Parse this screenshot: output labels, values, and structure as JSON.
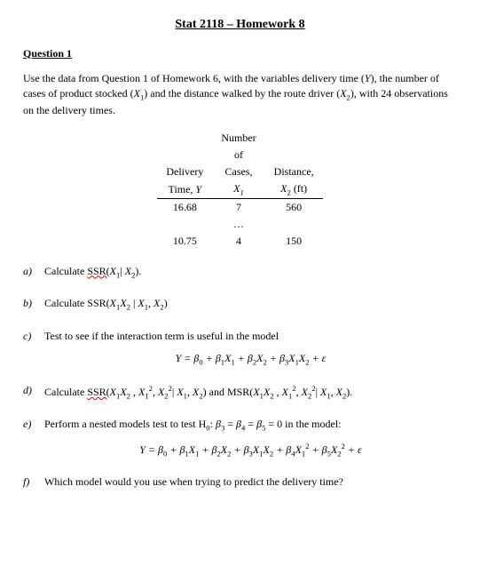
{
  "title": "Stat 2118 – Homework 8",
  "question_header": "Question 1",
  "intro": {
    "line1_a": "Use the data from Question 1 of Homework 6, with the variables delivery time (",
    "line1_b": "), the number",
    "line2_a": "of cases of product stocked (",
    "line2_b": ") and the distance walked by the route driver (",
    "line2_c": "), with 24",
    "line3": "observations on the delivery times.",
    "Y": "Y",
    "X1": "X",
    "X1_sub": "1",
    "X2": "X",
    "X2_sub": "2"
  },
  "table": {
    "headers": {
      "col1_a": "Delivery",
      "col1_b": "Time, ",
      "col1_c": "Y",
      "col2_a": "Number",
      "col2_b": "of",
      "col2_c": "Cases,",
      "col2_d": "X",
      "col2_e": "1",
      "col3_a": "Distance,",
      "col3_b": "X",
      "col3_c": "2",
      "col3_d": " (ft)"
    },
    "rows": [
      {
        "y": "16.68",
        "x1": "7",
        "x2": "560"
      },
      {
        "y": "",
        "x1": "…",
        "x2": ""
      },
      {
        "y": "10.75",
        "x1": "4",
        "x2": "150"
      }
    ]
  },
  "parts": {
    "a": {
      "marker": "a)",
      "prefix": "Calculate ",
      "ssr": "SSR(",
      "inside": "X",
      "s1": "1",
      "bar": "| ",
      "x2": "X",
      "s2": "2",
      "close": ")."
    },
    "b": {
      "marker": "b)",
      "text_a": "Calculate SSR(",
      "x1": "X",
      "s1": "1",
      "x2": "X",
      "s2": "2",
      "mid": " | ",
      "xx1": "X",
      "ss1": "1",
      "comma": ", ",
      "xx2": "X",
      "ss2": "2",
      "close": ")"
    },
    "c": {
      "marker": "c)",
      "text": "Test to see if the interaction term is useful in the model",
      "eq": {
        "Y": "Y",
        "eq": " = ",
        "b0": "β",
        "s0": "0",
        "p": " + ",
        "b1": "β",
        "s1": "1",
        "X1": "X",
        "xs1": "1",
        "b2": "β",
        "s2": "2",
        "X2": "X",
        "xs2": "2",
        "b3": "β",
        "s3": "3",
        "X1b": "X",
        "xs1b": "1",
        "X2b": "X",
        "xs2b": "2",
        "eps": " + ε"
      }
    },
    "d": {
      "marker": "d)",
      "prefix": "Calculate ",
      "ssr": "SSR(",
      "t1": "X",
      "t1s": "1",
      "t2": "X",
      "t2s": "2",
      "c1": " , ",
      "t3": "X",
      "t3s": "1",
      "t3p": "2",
      "c2": ", ",
      "t4": "X",
      "t4s": "2",
      "t4p": "2",
      "bar": "| ",
      "t5": "X",
      "t5s": "1",
      "c3": ", ",
      "t6": "X",
      "t6s": "2",
      "close1": ") and MSR(",
      "u1": "X",
      "u1s": "1",
      "u2": "X",
      "u2s": "2",
      "c4": " , ",
      "u3": "X",
      "u3s": "1",
      "u3p": "2",
      "c5": ", ",
      "u4": "X",
      "u4s": "2",
      "u4p": "2",
      "bar2": "| ",
      "u5": "X",
      "u5s": "1",
      "c6": ", ",
      "u6": "X",
      "u6s": "2",
      "close2": ")."
    },
    "e": {
      "marker": "e)",
      "text": "Perform a nested models test to test H",
      "h0s": "0",
      "colon": ":  ",
      "b3": "β",
      "s3": "3",
      "eq1": " = ",
      "b4": "β",
      "s4": "4",
      "eq2": " = ",
      "b5": "β",
      "s5": "5",
      "eq3": " = 0 in the model:",
      "eq": {
        "Y": "Y",
        "eq": " = ",
        "b0": "β",
        "s0": "0",
        "p": " + ",
        "b1": "β",
        "s1": "1",
        "X1": "X",
        "xs1": "1",
        "b2": "β",
        "s2": "2",
        "X2": "X",
        "xs2": "2",
        "b3": "β",
        "s3": "3",
        "X1b": "X",
        "xs1b": "1",
        "X2b": "X",
        "xs2b": "2",
        "b4": "β",
        "s4": "4",
        "X1c": "X",
        "xs1c": "1",
        "p1": "2",
        "b5": "β",
        "s5": "5",
        "X2c": "X",
        "xs2c": "2",
        "p2": "2",
        "eps": " + ε"
      }
    },
    "f": {
      "marker": "f)",
      "text": "Which model would you use when trying to predict the delivery time?"
    }
  }
}
